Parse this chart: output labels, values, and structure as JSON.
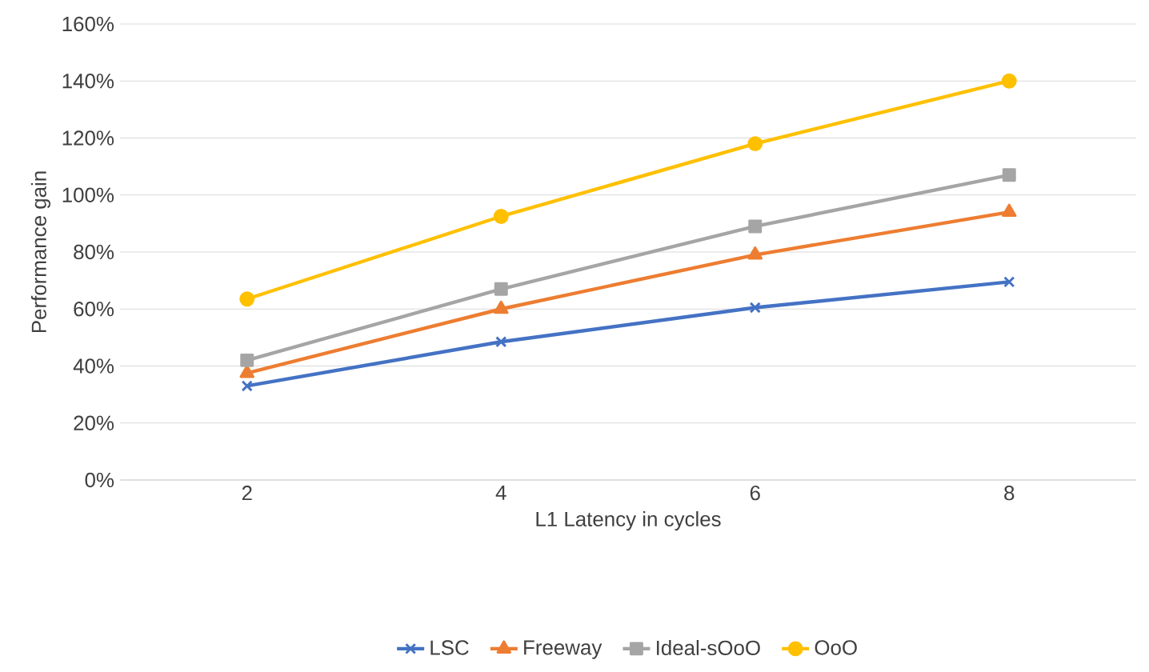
{
  "chart_data": {
    "type": "line",
    "xlabel": "L1 Latency in cycles",
    "ylabel": "Performance gain",
    "categories": [
      "2",
      "4",
      "6",
      "8"
    ],
    "series": [
      {
        "name": "LSC",
        "color": "#4472c4",
        "marker": "cross",
        "values": [
          33,
          48.5,
          60.5,
          69.5
        ]
      },
      {
        "name": "Freeway",
        "color": "#ed7d31",
        "marker": "triangle",
        "values": [
          37.5,
          60,
          79,
          94
        ]
      },
      {
        "name": "Ideal-sOoO",
        "color": "#a5a5a5",
        "marker": "square",
        "values": [
          42,
          67,
          89,
          107
        ]
      },
      {
        "name": "OoO",
        "color": "#ffc000",
        "marker": "circle",
        "values": [
          63.5,
          92.5,
          118,
          140
        ]
      }
    ],
    "ylim": [
      0,
      160
    ],
    "yticks": [
      {
        "value": 0,
        "label": "0%"
      },
      {
        "value": 20,
        "label": "20%"
      },
      {
        "value": 40,
        "label": "40%"
      },
      {
        "value": 60,
        "label": "60%"
      },
      {
        "value": 80,
        "label": "80%"
      },
      {
        "value": 100,
        "label": "100%"
      },
      {
        "value": 120,
        "label": "120%"
      },
      {
        "value": 140,
        "label": "140%"
      },
      {
        "value": 160,
        "label": "160%"
      }
    ],
    "grid": "y",
    "legend": "bottom",
    "line_style": "solid"
  }
}
